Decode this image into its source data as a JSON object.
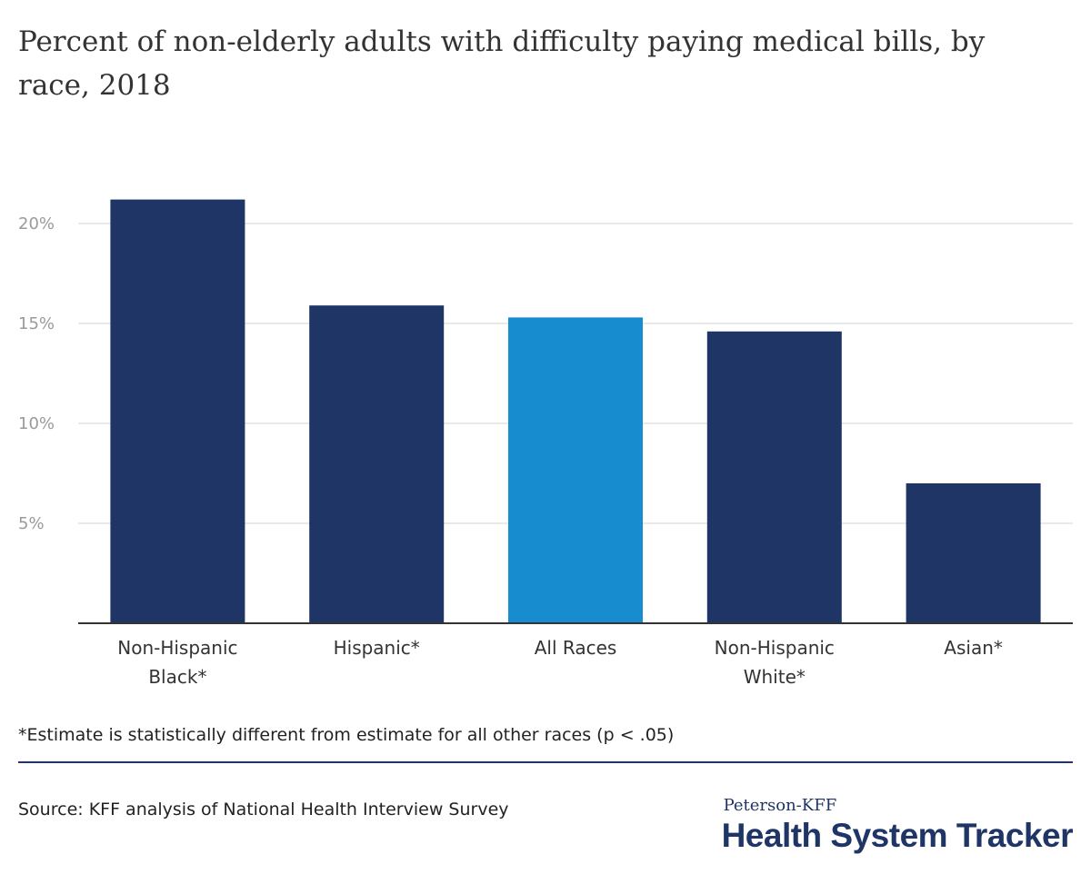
{
  "chart_data": {
    "type": "bar",
    "title": "Percent of non-elderly adults with difficulty paying medical bills, by race, 2018",
    "categories": [
      [
        "Non-Hispanic",
        "Black*"
      ],
      [
        "Hispanic*"
      ],
      [
        "All Races"
      ],
      [
        "Non-Hispanic",
        "White*"
      ],
      [
        "Asian*"
      ]
    ],
    "values": [
      21.2,
      15.9,
      15.3,
      14.6,
      7.0
    ],
    "highlight_index": 2,
    "colors": {
      "bar": "#1f3566",
      "highlight": "#178ccf",
      "grid": "#e2e2e2",
      "axis": "#333333"
    },
    "ylim": [
      0,
      22
    ],
    "yticks": [
      {
        "value": 5,
        "label": "5%"
      },
      {
        "value": 10,
        "label": "10%"
      },
      {
        "value": 15,
        "label": "15%"
      },
      {
        "value": 20,
        "label": "20%"
      }
    ],
    "grid": true,
    "legend": "none",
    "xlabel": "",
    "ylabel": ""
  },
  "footnote": "*Estimate is statistically different from estimate for all other races (p < .05)",
  "source": "Source: KFF analysis of National Health Interview Survey",
  "logo": {
    "top": "Peterson-KFF",
    "main": "Health System Tracker"
  }
}
